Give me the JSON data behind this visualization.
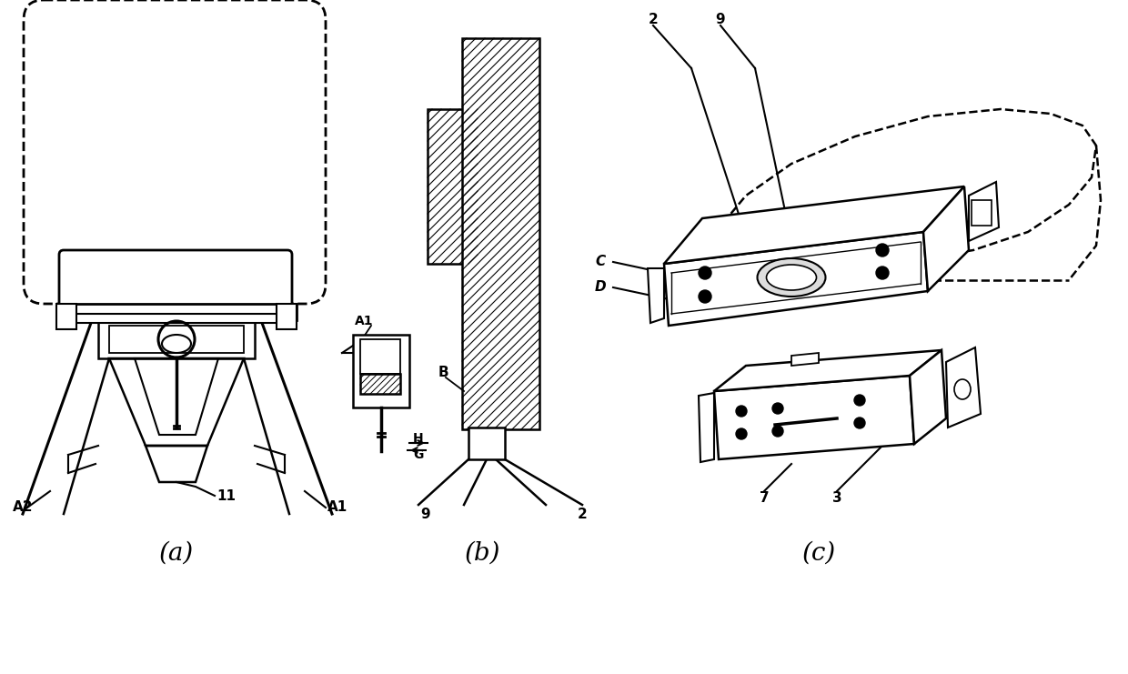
{
  "bg_color": "#ffffff",
  "fig_width": 12.4,
  "fig_height": 7.41,
  "dpi": 100,
  "labels": {
    "a_label": "(a)",
    "b_label": "(b)",
    "c_label": "(c)",
    "a2": "A2",
    "a1_a": "A1",
    "eleven": "11",
    "b_a1": "A1",
    "b_b": "B",
    "b_h": "H",
    "b_g": "G",
    "b_9": "9",
    "b_2": "2",
    "c_2": "2",
    "c_9": "9",
    "c_c": "C",
    "c_d": "D",
    "c_7": "7",
    "c_3": "3"
  }
}
